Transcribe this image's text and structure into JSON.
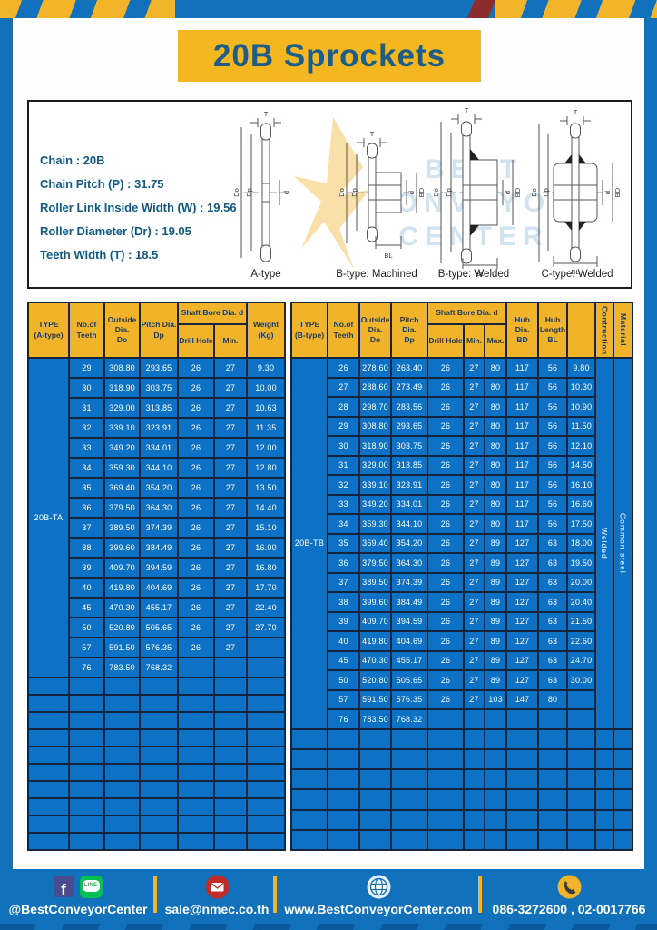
{
  "page_title": "20B Sprockets",
  "specs": [
    "Chain  : 20B",
    "Chain Pitch (P)  :  31.75",
    "Roller Link Inside Width (W)  :  19.56",
    "Roller Diameter (Dr)  : 19.05",
    "Teeth Width (T)  :  18.5"
  ],
  "diagram": {
    "types": [
      "A-type",
      "B-type: Machined",
      "B-type: Welded",
      "C-type: Welded"
    ],
    "dims": {
      "t": "T",
      "do": "Do",
      "dp": "Dp",
      "d": "d",
      "bd": "BD",
      "bl": "BL"
    },
    "watermark": {
      "line1": "BEST",
      "line2": "CONVEYOR",
      "line3": "CENTER"
    }
  },
  "table_a": {
    "headers": {
      "type": "TYPE\n(A-type)",
      "teeth": "No.of\nTeeth",
      "outside": "Outside\nDia.\nDo",
      "pitch": "Pitch Dia.\nDp",
      "shaft_bore": "Shaft Bore Dia. d",
      "drill": "Drill Hole",
      "min": "Min.",
      "weight": "Weight\n(Kg)"
    },
    "type_label": "20B-TA",
    "rows": [
      [
        "29",
        "308.80",
        "293.65",
        "26",
        "27",
        "9.30"
      ],
      [
        "30",
        "318.90",
        "303.75",
        "26",
        "27",
        "10.00"
      ],
      [
        "31",
        "329.00",
        "313.85",
        "26",
        "27",
        "10.63"
      ],
      [
        "32",
        "339.10",
        "323.91",
        "26",
        "27",
        "11.35"
      ],
      [
        "33",
        "349.20",
        "334.01",
        "26",
        "27",
        "12.00"
      ],
      [
        "34",
        "359.30",
        "344.10",
        "26",
        "27",
        "12.80"
      ],
      [
        "35",
        "369.40",
        "354.20",
        "26",
        "27",
        "13.50"
      ],
      [
        "36",
        "379.50",
        "364.30",
        "26",
        "27",
        "14.40"
      ],
      [
        "37",
        "389.50",
        "374.39",
        "26",
        "27",
        "15.10"
      ],
      [
        "38",
        "399.60",
        "384.49",
        "26",
        "27",
        "16.00"
      ],
      [
        "39",
        "409.70",
        "394.59",
        "26",
        "27",
        "16.80"
      ],
      [
        "40",
        "419.80",
        "404.69",
        "26",
        "27",
        "17.70"
      ],
      [
        "45",
        "470.30",
        "455.17",
        "26",
        "27",
        "22.40"
      ],
      [
        "50",
        "520.80",
        "505.65",
        "26",
        "27",
        "27.70"
      ],
      [
        "57",
        "591.50",
        "576.35",
        "26",
        "27",
        ""
      ],
      [
        "76",
        "783.50",
        "768.32",
        "",
        "",
        ""
      ]
    ],
    "empty_rows": 10,
    "total_cols": 7
  },
  "table_b": {
    "headers": {
      "type": "TYPE\n(B-type)",
      "teeth": "No.of\nTeeth",
      "outside": "Outside\nDia.\nDo",
      "pitch": "Pitch Dia.\nDp",
      "shaft_bore": "Shaft Bore Dia. d",
      "drill": "Drill Hole",
      "min": "Min.",
      "max": "Max.",
      "hub_dia": "Hub Dia.\nBD",
      "hub_length": "Hub\nLength\nBL",
      "construction": "Contruction",
      "material": "Material"
    },
    "type_label": "20B-TB",
    "construction": "Welded",
    "material": "Common  steel",
    "rows": [
      [
        "26",
        "278.60",
        "263.40",
        "26",
        "27",
        "80",
        "117",
        "56",
        "9.80"
      ],
      [
        "27",
        "288.60",
        "273.49",
        "26",
        "27",
        "80",
        "117",
        "56",
        "10.30"
      ],
      [
        "28",
        "298.70",
        "283.56",
        "26",
        "27",
        "80",
        "117",
        "56",
        "10.90"
      ],
      [
        "29",
        "308.80",
        "293.65",
        "26",
        "27",
        "80",
        "117",
        "56",
        "11.50"
      ],
      [
        "30",
        "318.90",
        "303.75",
        "26",
        "27",
        "80",
        "117",
        "56",
        "12.10"
      ],
      [
        "31",
        "329.00",
        "313.85",
        "26",
        "27",
        "80",
        "117",
        "56",
        "14.50"
      ],
      [
        "32",
        "339.10",
        "323.91",
        "26",
        "27",
        "80",
        "117",
        "56",
        "16.10"
      ],
      [
        "33",
        "349.20",
        "334.01",
        "26",
        "27",
        "80",
        "117",
        "56",
        "16.60"
      ],
      [
        "34",
        "359.30",
        "344.10",
        "26",
        "27",
        "80",
        "117",
        "56",
        "17.50"
      ],
      [
        "35",
        "369.40",
        "354.20",
        "26",
        "27",
        "89",
        "127",
        "63",
        "18.00"
      ],
      [
        "36",
        "379.50",
        "364.30",
        "26",
        "27",
        "89",
        "127",
        "63",
        "19.50"
      ],
      [
        "37",
        "389.50",
        "374.39",
        "26",
        "27",
        "89",
        "127",
        "63",
        "20.00"
      ],
      [
        "38",
        "399.60",
        "384.49",
        "26",
        "27",
        "89",
        "127",
        "63",
        "20.40"
      ],
      [
        "39",
        "409.70",
        "394.59",
        "26",
        "27",
        "89",
        "127",
        "63",
        "21.50"
      ],
      [
        "40",
        "419.80",
        "404.69",
        "26",
        "27",
        "89",
        "127",
        "63",
        "22.60"
      ],
      [
        "45",
        "470.30",
        "455.17",
        "26",
        "27",
        "89",
        "127",
        "63",
        "24.70"
      ],
      [
        "50",
        "520.80",
        "505.65",
        "26",
        "27",
        "89",
        "127",
        "63",
        "30.00"
      ],
      [
        "57",
        "591.50",
        "576.35",
        "26",
        "27",
        "103",
        "147",
        "80",
        ""
      ],
      [
        "76",
        "783.50",
        "768.32",
        "",
        "",
        "",
        "",
        "",
        ""
      ]
    ],
    "empty_rows": 6,
    "total_cols": 12
  },
  "footer": {
    "facebook_glyph": "f",
    "line_label": "LINE",
    "items": [
      {
        "label": "@BestConveyorCenter"
      },
      {
        "label": "sale@nmec.co.th"
      },
      {
        "label": "www.BestConveyorCenter.com"
      },
      {
        "label": "086-3272600 , 02-0017766"
      }
    ]
  },
  "colors": {
    "frame_blue": "#1171bb",
    "cell_blue": "#0d71c5",
    "header_yellow": "#f0b329",
    "title_yellow": "#f4b71f",
    "border_navy": "#15263c",
    "title_text": "#1e5d87",
    "hazard_red": "#8b2d2f"
  }
}
